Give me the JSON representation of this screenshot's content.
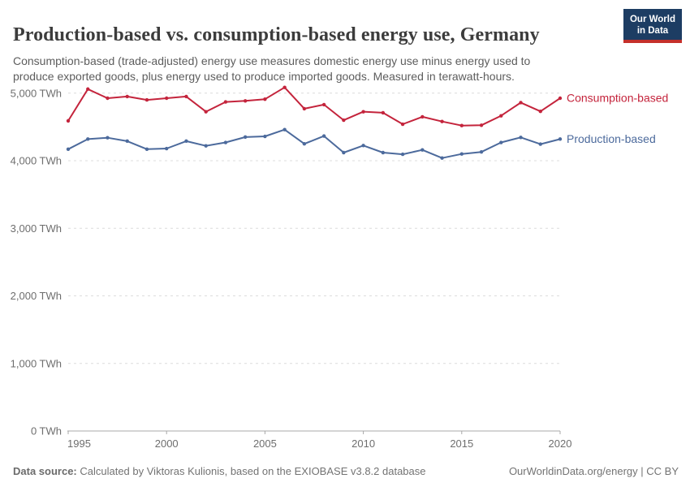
{
  "header": {
    "title": "Production-based vs. consumption-based energy use, Germany",
    "subtitle_lines": {
      "0": "Consumption-based (trade-adjusted) energy use measures domestic energy use minus energy used to",
      "1": "produce exported goods, plus energy used to produce imported goods. Measured in terawatt-hours."
    },
    "logo": {
      "line1": "Our World",
      "line2": "in Data"
    }
  },
  "chart_data": {
    "type": "line",
    "title": "Production-based vs. consumption-based energy use, Germany",
    "xlabel": "",
    "ylabel": "TWh",
    "xlim": [
      1995,
      2020
    ],
    "ylim": [
      0,
      5000
    ],
    "grid": "horizontal-dashed",
    "legend_position": "end-of-line-labels",
    "x": [
      1995,
      1996,
      1997,
      1998,
      1999,
      2000,
      2001,
      2002,
      2003,
      2004,
      2005,
      2006,
      2007,
      2008,
      2009,
      2010,
      2011,
      2012,
      2013,
      2014,
      2015,
      2016,
      2017,
      2018,
      2019,
      2020
    ],
    "x_ticks": [
      1995,
      2000,
      2005,
      2010,
      2015,
      2020
    ],
    "y_ticks": [
      {
        "value": 0,
        "label": "0 TWh"
      },
      {
        "value": 1000,
        "label": "1,000 TWh"
      },
      {
        "value": 2000,
        "label": "2,000 TWh"
      },
      {
        "value": 3000,
        "label": "3,000 TWh"
      },
      {
        "value": 4000,
        "label": "4,000 TWh"
      },
      {
        "value": 5000,
        "label": "5,000 TWh"
      }
    ],
    "series": [
      {
        "name": "Consumption-based",
        "color": "#c4243c",
        "values": [
          4590,
          5060,
          4925,
          4950,
          4900,
          4925,
          4950,
          4725,
          4870,
          4885,
          4910,
          5085,
          4770,
          4830,
          4600,
          4725,
          4710,
          4540,
          4650,
          4580,
          4520,
          4525,
          4665,
          4860,
          4730,
          4925
        ]
      },
      {
        "name": "Production-based",
        "color": "#4c6a9c",
        "values": [
          4170,
          4320,
          4340,
          4290,
          4170,
          4180,
          4290,
          4220,
          4270,
          4350,
          4360,
          4460,
          4250,
          4365,
          4120,
          4225,
          4120,
          4095,
          4160,
          4040,
          4100,
          4130,
          4270,
          4345,
          4245,
          4320
        ]
      }
    ]
  },
  "footer": {
    "source_label": "Data source:",
    "source_text": " Calculated by Viktoras Kulionis, based on the EXIOBASE v3.8.2 database",
    "link": "OurWorldinData.org/energy | CC BY"
  },
  "colors": {
    "consumption_red": "#c4243c",
    "production_blue": "#4c6a9c",
    "logo_navy": "#1d3d63",
    "logo_red": "#c5302b",
    "gridline": "#dcdcdc",
    "axis": "#a8a8a8",
    "tick_text": "#6e6e6e"
  }
}
